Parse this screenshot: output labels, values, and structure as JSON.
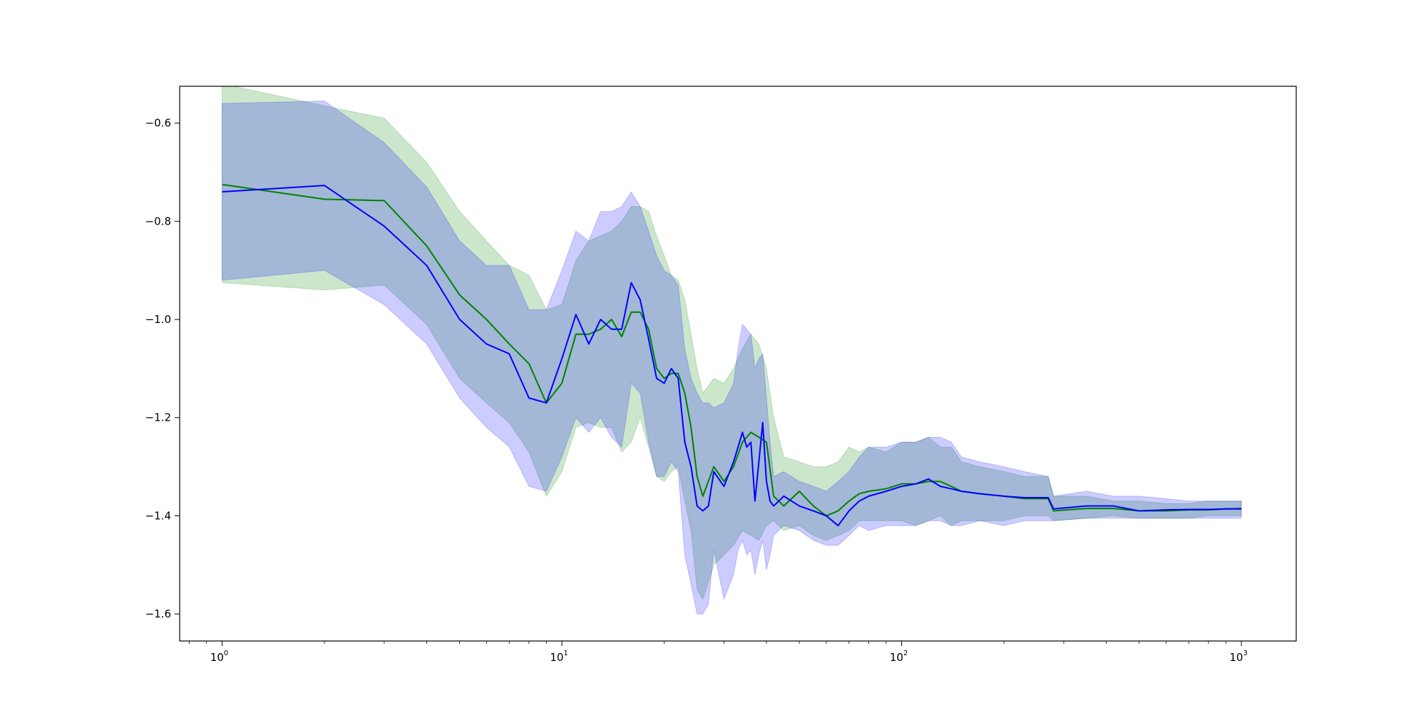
{
  "chart_data": {
    "type": "line",
    "title": "",
    "xlabel": "",
    "ylabel": "",
    "xscale": "log",
    "xlim": [
      0.75,
      1450
    ],
    "ylim": [
      -1.655,
      -0.525
    ],
    "grid": false,
    "x_ticks": [
      {
        "value": 1,
        "base": "10",
        "exp": "0"
      },
      {
        "value": 10,
        "base": "10",
        "exp": "1"
      },
      {
        "value": 100,
        "base": "10",
        "exp": "2"
      },
      {
        "value": 1000,
        "base": "10",
        "exp": "3"
      }
    ],
    "y_ticks": [
      {
        "value": -0.6,
        "label": "−0.6"
      },
      {
        "value": -0.8,
        "label": "−0.8"
      },
      {
        "value": -1.0,
        "label": "−1.0"
      },
      {
        "value": -1.2,
        "label": "−1.2"
      },
      {
        "value": -1.4,
        "label": "−1.4"
      },
      {
        "value": -1.6,
        "label": "−1.6"
      }
    ],
    "colors": {
      "green_line": "#008000",
      "green_band": "#008000",
      "blue_line": "#0000ff",
      "blue_band": "#0000ff"
    },
    "series": [
      {
        "color": "green",
        "x": [
          1,
          2,
          3,
          4,
          5,
          6,
          7,
          8,
          9,
          10,
          11,
          12,
          13,
          14,
          15,
          16,
          17,
          18,
          19,
          20,
          21,
          22,
          23,
          24,
          25,
          26,
          28,
          30,
          32,
          34,
          36,
          38,
          40,
          42,
          45,
          50,
          55,
          60,
          65,
          70,
          75,
          80,
          90,
          100,
          110,
          120,
          130,
          140,
          150,
          170,
          200,
          230,
          270,
          280,
          350,
          420,
          500,
          600,
          700,
          800,
          900,
          1000
        ],
        "mean": [
          -0.725,
          -0.755,
          -0.758,
          -0.85,
          -0.95,
          -1.0,
          -1.05,
          -1.09,
          -1.17,
          -1.13,
          -1.03,
          -1.03,
          -1.02,
          -1.0,
          -1.035,
          -0.985,
          -0.985,
          -1.02,
          -1.1,
          -1.12,
          -1.11,
          -1.11,
          -1.15,
          -1.22,
          -1.32,
          -1.36,
          -1.3,
          -1.33,
          -1.3,
          -1.25,
          -1.23,
          -1.24,
          -1.25,
          -1.36,
          -1.38,
          -1.35,
          -1.38,
          -1.4,
          -1.39,
          -1.37,
          -1.355,
          -1.35,
          -1.345,
          -1.335,
          -1.335,
          -1.33,
          -1.33,
          -1.34,
          -1.35,
          -1.355,
          -1.36,
          -1.365,
          -1.365,
          -1.39,
          -1.385,
          -1.385,
          -1.39,
          -1.39,
          -1.388,
          -1.388,
          -1.386,
          -1.385
        ],
        "upper": [
          -0.52,
          -0.565,
          -0.59,
          -0.68,
          -0.78,
          -0.84,
          -0.89,
          -0.91,
          -0.98,
          -0.97,
          -0.88,
          -0.84,
          -0.83,
          -0.82,
          -0.8,
          -0.77,
          -0.77,
          -0.78,
          -0.83,
          -0.87,
          -0.91,
          -0.92,
          -0.96,
          -1.03,
          -1.1,
          -1.15,
          -1.12,
          -1.13,
          -1.1,
          -1.06,
          -1.03,
          -1.05,
          -1.1,
          -1.2,
          -1.28,
          -1.29,
          -1.3,
          -1.3,
          -1.29,
          -1.26,
          -1.27,
          -1.26,
          -1.27,
          -1.25,
          -1.25,
          -1.24,
          -1.26,
          -1.26,
          -1.29,
          -1.3,
          -1.31,
          -1.32,
          -1.32,
          -1.36,
          -1.36,
          -1.37,
          -1.37,
          -1.375,
          -1.375,
          -1.37,
          -1.37,
          -1.37
        ],
        "lower": [
          -0.925,
          -0.94,
          -0.93,
          -1.01,
          -1.12,
          -1.17,
          -1.21,
          -1.27,
          -1.36,
          -1.31,
          -1.22,
          -1.21,
          -1.22,
          -1.22,
          -1.27,
          -1.25,
          -1.2,
          -1.26,
          -1.32,
          -1.33,
          -1.31,
          -1.3,
          -1.37,
          -1.43,
          -1.55,
          -1.57,
          -1.5,
          -1.48,
          -1.46,
          -1.43,
          -1.44,
          -1.45,
          -1.42,
          -1.41,
          -1.43,
          -1.42,
          -1.44,
          -1.45,
          -1.44,
          -1.43,
          -1.41,
          -1.41,
          -1.41,
          -1.41,
          -1.42,
          -1.41,
          -1.4,
          -1.42,
          -1.41,
          -1.41,
          -1.41,
          -1.4,
          -1.4,
          -1.41,
          -1.405,
          -1.4,
          -1.405,
          -1.405,
          -1.405,
          -1.4,
          -1.4,
          -1.4
        ]
      },
      {
        "color": "blue",
        "x": [
          1,
          2,
          3,
          4,
          5,
          6,
          7,
          8,
          9,
          10,
          11,
          12,
          13,
          14,
          15,
          16,
          17,
          18,
          19,
          20,
          21,
          22,
          23,
          24,
          25,
          26,
          27,
          28,
          30,
          32,
          33,
          34,
          35,
          36,
          37,
          38,
          39,
          40,
          41,
          42,
          45,
          50,
          55,
          60,
          65,
          70,
          75,
          80,
          90,
          100,
          110,
          120,
          130,
          140,
          150,
          170,
          200,
          230,
          270,
          280,
          350,
          420,
          500,
          600,
          700,
          800,
          900,
          1000
        ],
        "mean": [
          -0.74,
          -0.727,
          -0.81,
          -0.89,
          -1.0,
          -1.05,
          -1.07,
          -1.16,
          -1.17,
          -1.08,
          -0.99,
          -1.05,
          -1.0,
          -1.02,
          -1.02,
          -0.925,
          -0.96,
          -1.04,
          -1.12,
          -1.13,
          -1.1,
          -1.12,
          -1.25,
          -1.3,
          -1.38,
          -1.39,
          -1.38,
          -1.31,
          -1.34,
          -1.29,
          -1.26,
          -1.23,
          -1.26,
          -1.25,
          -1.37,
          -1.29,
          -1.21,
          -1.33,
          -1.37,
          -1.38,
          -1.36,
          -1.38,
          -1.39,
          -1.4,
          -1.42,
          -1.39,
          -1.37,
          -1.36,
          -1.35,
          -1.34,
          -1.335,
          -1.325,
          -1.34,
          -1.345,
          -1.35,
          -1.355,
          -1.36,
          -1.363,
          -1.363,
          -1.386,
          -1.38,
          -1.38,
          -1.39,
          -1.388,
          -1.387,
          -1.387,
          -1.386,
          -1.386
        ],
        "upper": [
          -0.56,
          -0.555,
          -0.64,
          -0.73,
          -0.84,
          -0.89,
          -0.89,
          -0.98,
          -0.98,
          -0.9,
          -0.82,
          -0.84,
          -0.78,
          -0.78,
          -0.77,
          -0.74,
          -0.77,
          -0.82,
          -0.87,
          -0.9,
          -0.91,
          -0.93,
          -1.06,
          -1.12,
          -1.15,
          -1.17,
          -1.17,
          -1.18,
          -1.17,
          -1.13,
          -1.06,
          -1.01,
          -1.02,
          -1.03,
          -1.1,
          -1.08,
          -1.07,
          -1.16,
          -1.25,
          -1.32,
          -1.31,
          -1.33,
          -1.34,
          -1.35,
          -1.33,
          -1.31,
          -1.28,
          -1.26,
          -1.26,
          -1.25,
          -1.25,
          -1.24,
          -1.24,
          -1.25,
          -1.28,
          -1.29,
          -1.3,
          -1.31,
          -1.32,
          -1.36,
          -1.35,
          -1.36,
          -1.36,
          -1.365,
          -1.37,
          -1.37,
          -1.37,
          -1.37
        ],
        "lower": [
          -0.92,
          -0.9,
          -0.97,
          -1.05,
          -1.16,
          -1.22,
          -1.26,
          -1.34,
          -1.35,
          -1.28,
          -1.2,
          -1.23,
          -1.2,
          -1.24,
          -1.26,
          -1.13,
          -1.15,
          -1.25,
          -1.32,
          -1.32,
          -1.29,
          -1.31,
          -1.48,
          -1.54,
          -1.6,
          -1.6,
          -1.58,
          -1.47,
          -1.57,
          -1.52,
          -1.47,
          -1.45,
          -1.48,
          -1.47,
          -1.52,
          -1.48,
          -1.45,
          -1.51,
          -1.48,
          -1.44,
          -1.42,
          -1.43,
          -1.45,
          -1.46,
          -1.46,
          -1.44,
          -1.42,
          -1.43,
          -1.42,
          -1.42,
          -1.42,
          -1.41,
          -1.41,
          -1.42,
          -1.42,
          -1.41,
          -1.42,
          -1.41,
          -1.41,
          -1.41,
          -1.405,
          -1.405,
          -1.405,
          -1.405,
          -1.405,
          -1.405,
          -1.405,
          -1.405
        ]
      }
    ]
  }
}
